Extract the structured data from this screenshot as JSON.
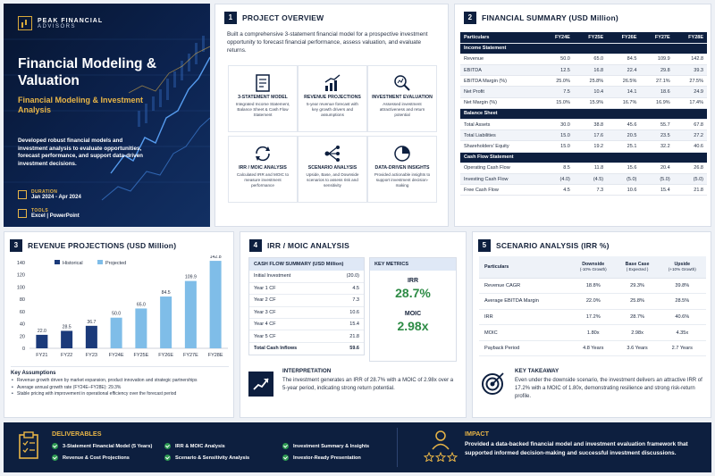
{
  "colors": {
    "navy": "#0d1f3f",
    "gold": "#e8b547",
    "historical": "#1b3a7a",
    "projected": "#7fbde8",
    "green": "#2d8b45"
  },
  "hero": {
    "brand_line1": "PEAK FINANCIAL",
    "brand_line2": "ADVISORS",
    "title": "Financial Modeling & Valuation",
    "subtitle": "Financial Modeling & Investment Analysis",
    "description": "Developed robust financial models and investment analysis to evaluate opportunities, forecast performance, and support data-driven investment decisions.",
    "duration_label": "DURATION",
    "duration_value": "Jan 2024 - Apr 2024",
    "tools_label": "TOOLS",
    "tools_value": "Excel | PowerPoint"
  },
  "overview": {
    "number": "1",
    "title": "PROJECT OVERVIEW",
    "description": "Built a comprehensive 3-statement financial model for a prospective investment opportunity to forecast financial performance, assess valuation, and evaluate returns.",
    "features": [
      {
        "icon": "document-icon",
        "title": "3-STATEMENT MODEL",
        "desc": "Integrated Income Statement, Balance Sheet & Cash Flow Statement"
      },
      {
        "icon": "growth-chart-icon",
        "title": "REVENUE PROJECTIONS",
        "desc": "5-year revenue forecast with key growth drivers and assumptions"
      },
      {
        "icon": "magnifier-chart-icon",
        "title": "INVESTMENT EVALUATION",
        "desc": "Assessed investment attractiveness and return potential"
      },
      {
        "icon": "cycle-icon",
        "title": "IRR / MOIC ANALYSIS",
        "desc": "Calculated IRR and MOIC to measure investment performance"
      },
      {
        "icon": "scenario-icon",
        "title": "SCENARIO ANALYSIS",
        "desc": "Upside, Base, and Downside scenarios to assess risk and sensitivity"
      },
      {
        "icon": "pie-chart-icon",
        "title": "DATA-DRIVEN INSIGHTS",
        "desc": "Provided actionable insights to support investment decision-making"
      }
    ]
  },
  "finsum": {
    "number": "2",
    "title": "FINANCIAL SUMMARY (USD Million)",
    "columns": [
      "Particulars",
      "FY24E",
      "FY25E",
      "FY26E",
      "FY27E",
      "FY28E"
    ],
    "rows": [
      {
        "group": "Income Statement"
      },
      {
        "label": "Revenue",
        "values": [
          "50.0",
          "65.0",
          "84.5",
          "109.9",
          "142.8"
        ]
      },
      {
        "label": "EBITDA",
        "values": [
          "12.5",
          "16.8",
          "22.4",
          "29.8",
          "39.3"
        ]
      },
      {
        "label": "EBITDA Margin (%)",
        "values": [
          "25.0%",
          "25.8%",
          "26.5%",
          "27.1%",
          "27.5%"
        ]
      },
      {
        "label": "Net Profit",
        "values": [
          "7.5",
          "10.4",
          "14.1",
          "18.6",
          "24.9"
        ]
      },
      {
        "label": "Net Margin (%)",
        "values": [
          "15.0%",
          "15.9%",
          "16.7%",
          "16.9%",
          "17.4%"
        ]
      },
      {
        "group": "Balance Sheet"
      },
      {
        "label": "Total Assets",
        "values": [
          "30.0",
          "38.8",
          "45.6",
          "55.7",
          "67.8"
        ]
      },
      {
        "label": "Total Liabilities",
        "values": [
          "15.0",
          "17.6",
          "20.5",
          "23.5",
          "27.2"
        ]
      },
      {
        "label": "Shareholders' Equity",
        "values": [
          "15.0",
          "19.2",
          "25.1",
          "32.2",
          "40.6"
        ]
      },
      {
        "group": "Cash Flow Statement"
      },
      {
        "label": "Operating Cash Flow",
        "values": [
          "8.5",
          "11.8",
          "15.6",
          "20.4",
          "26.8"
        ]
      },
      {
        "label": "Investing Cash Flow",
        "values": [
          "(4.0)",
          "(4.5)",
          "(5.0)",
          "(5.0)",
          "(5.0)"
        ]
      },
      {
        "label": "Free Cash Flow",
        "values": [
          "4.5",
          "7.3",
          "10.6",
          "15.4",
          "21.8"
        ]
      }
    ]
  },
  "revenue": {
    "number": "3",
    "title": "REVENUE PROJECTIONS (USD Million)",
    "key_title": "Key Assumptions",
    "assumptions": [
      "Revenue growth driven by market expansion, product innovation and strategic partnerships",
      "Average annual growth rate (FY24E–FY28E): 29.3%",
      "Stable pricing with improvement in operational efficiency over the forecast period"
    ]
  },
  "chart_data": {
    "type": "bar",
    "categories": [
      "FY21",
      "FY22",
      "FY23",
      "FY24E",
      "FY25E",
      "FY26E",
      "FY27E",
      "FY28E"
    ],
    "series": [
      {
        "name": "Historical",
        "values": [
          22.0,
          28.5,
          36.7,
          null,
          null,
          null,
          null,
          null
        ]
      },
      {
        "name": "Projected",
        "values": [
          null,
          null,
          null,
          50.0,
          65.0,
          84.5,
          109.9,
          142.8
        ]
      }
    ],
    "value_labels": [
      "22.0",
      "28.5",
      "36.7",
      "50.0",
      "65.0",
      "84.5",
      "109.9",
      "142.8"
    ],
    "yticks": [
      0,
      20,
      40,
      60,
      80,
      100,
      120,
      140
    ],
    "ylim": [
      0,
      140
    ],
    "legend": "top-left",
    "grid": false
  },
  "irr": {
    "number": "4",
    "title": "IRR / MOIC ANALYSIS",
    "cf_title": "CASH FLOW SUMMARY (USD Million)",
    "cf_rows": [
      {
        "label": "Initial Investment",
        "value": "(20.0)"
      },
      {
        "label": "Year 1 CF",
        "value": "4.5"
      },
      {
        "label": "Year 2 CF",
        "value": "7.3"
      },
      {
        "label": "Year 3 CF",
        "value": "10.6"
      },
      {
        "label": "Year 4 CF",
        "value": "15.4"
      },
      {
        "label": "Year 5 CF",
        "value": "21.8"
      }
    ],
    "cf_total_label": "Total Cash Inflows",
    "cf_total_value": "59.6",
    "km_title": "KEY METRICS",
    "irr_label": "IRR",
    "irr_value": "28.7%",
    "moic_label": "MOIC",
    "moic_value": "2.98x",
    "interp_title": "INTERPRETATION",
    "interp_text": "The investment generates an IRR of 28.7% with a MOIC of 2.98x over a 5-year period, indicating strong return potential."
  },
  "scenario": {
    "number": "5",
    "title": "SCENARIO ANALYSIS (IRR %)",
    "headers": [
      {
        "name": "Particulars",
        "sub": ""
      },
      {
        "name": "Downside",
        "sub": "(-10% Growth)"
      },
      {
        "name": "Base Case",
        "sub": "( Expected )"
      },
      {
        "name": "Upside",
        "sub": "(+10% Growth)"
      }
    ],
    "rows": [
      [
        "Revenue CAGR",
        "18.8%",
        "29.3%",
        "39.8%"
      ],
      [
        "Average EBITDA Margin",
        "22.0%",
        "25.8%",
        "28.5%"
      ],
      [
        "IRR",
        "17.2%",
        "28.7%",
        "40.6%"
      ],
      [
        "MOIC",
        "1.80x",
        "2.98x",
        "4.35x"
      ],
      [
        "Payback Period",
        "4.8 Years",
        "3.6 Years",
        "2.7 Years"
      ]
    ],
    "take_title": "KEY TAKEAWAY",
    "take_text": "Even under the downside scenario, the investment delivers an attractive IRR of 17.2% with a MOIC of 1.80x, demonstrating resilience and strong risk-return profile."
  },
  "deliverables": {
    "title": "DELIVERABLES",
    "items": [
      "3-Statement Financial Model (5 Years)",
      "IRR & MOIC Analysis",
      "Investment Summary & Insights",
      "Revenue & Cost Projections",
      "Scenario & Sensitivity Analysis",
      "Investor-Ready Presentation"
    ]
  },
  "impact": {
    "title": "IMPACT",
    "text": "Provided a data-backed financial model and investment evaluation framework that supported informed decision-making and successful investment discussions."
  }
}
